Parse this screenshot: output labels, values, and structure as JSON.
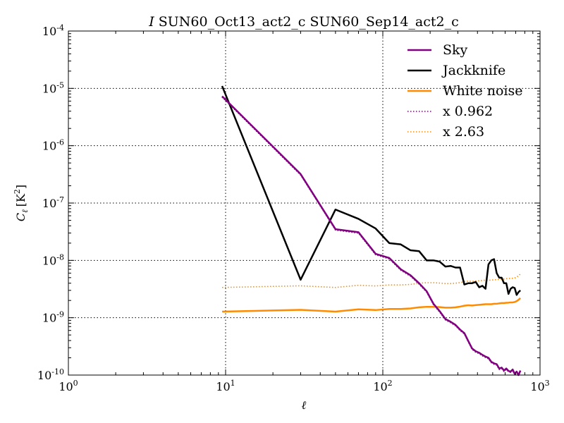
{
  "chart_data": {
    "type": "line",
    "title_prefix": "I",
    "title": "SUN60_Oct13_act2_c SUN60_Sep14_act2_c",
    "xlabel": "ℓ",
    "ylabel_main": "C",
    "ylabel_sub": "ℓ",
    "ylabel_unit": "[K",
    "ylabel_unit_exp": "2",
    "ylabel_unit_close": "]",
    "x_scale": "log",
    "y_scale": "log",
    "xlim": [
      1,
      1000
    ],
    "ylim": [
      1e-10,
      0.0001
    ],
    "grid": true,
    "legend_position": "top-right",
    "x_ticks": [
      {
        "value": 1,
        "base": "10",
        "exp": "0"
      },
      {
        "value": 10,
        "base": "10",
        "exp": "1"
      },
      {
        "value": 100,
        "base": "10",
        "exp": "2"
      },
      {
        "value": 1000,
        "base": "10",
        "exp": "3"
      }
    ],
    "y_ticks": [
      {
        "value": 1e-10,
        "base": "10",
        "exp": "-10"
      },
      {
        "value": 1e-09,
        "base": "10",
        "exp": "-9"
      },
      {
        "value": 1e-08,
        "base": "10",
        "exp": "-8"
      },
      {
        "value": 1e-07,
        "base": "10",
        "exp": "-7"
      },
      {
        "value": 1e-06,
        "base": "10",
        "exp": "-6"
      },
      {
        "value": 1e-05,
        "base": "10",
        "exp": "-5"
      },
      {
        "value": 0.0001,
        "base": "10",
        "exp": "-4"
      }
    ],
    "series": [
      {
        "name": "Sky",
        "color": "#800080",
        "style": "solid",
        "x": [
          9.5,
          30,
          50,
          70,
          90,
          110,
          130,
          150,
          170,
          190,
          210,
          230,
          250,
          270,
          290,
          310,
          330,
          350,
          370,
          390,
          410,
          430,
          450,
          470,
          490,
          510,
          530,
          550,
          570,
          590,
          610,
          630,
          650,
          670,
          690,
          710,
          730,
          750
        ],
        "y": [
          7.3e-06,
          3.2e-07,
          3.5e-08,
          3.1e-08,
          1.3e-08,
          1.1e-08,
          7e-09,
          5.5e-09,
          4e-09,
          2.9e-09,
          1.75e-09,
          1.3e-09,
          9.5e-10,
          8.5e-10,
          7.5e-10,
          6.2e-10,
          5.4e-10,
          3.9e-10,
          2.9e-10,
          2.6e-10,
          2.45e-10,
          2.25e-10,
          2.1e-10,
          2e-10,
          1.7e-10,
          1.6e-10,
          1.55e-10,
          1.3e-10,
          1.35e-10,
          1.2e-10,
          1.3e-10,
          1.18e-10,
          1.15e-10,
          1.25e-10,
          1.05e-10,
          1.15e-10,
          1e-10,
          1.2e-10
        ]
      },
      {
        "name": "Jackknife",
        "color": "#000000",
        "style": "solid",
        "x": [
          9.5,
          30,
          50,
          70,
          90,
          110,
          130,
          150,
          170,
          190,
          210,
          230,
          250,
          270,
          290,
          310,
          330,
          350,
          370,
          390,
          410,
          430,
          450,
          470,
          490,
          510,
          530,
          550,
          570,
          590,
          610,
          630,
          650,
          670,
          690,
          710,
          730,
          750
        ],
        "y": [
          1.1e-05,
          4.6e-09,
          7.7e-08,
          5.3e-08,
          3.6e-08,
          2e-08,
          1.9e-08,
          1.5e-08,
          1.45e-08,
          1e-08,
          1e-08,
          9.5e-09,
          7.8e-09,
          8e-09,
          7.5e-09,
          7.5e-09,
          3.8e-09,
          4e-09,
          4e-09,
          4.2e-09,
          3.4e-09,
          3.6e-09,
          3.2e-09,
          8.5e-09,
          1e-08,
          1.05e-08,
          6e-09,
          5e-09,
          5e-09,
          4e-09,
          4e-09,
          2.6e-09,
          3.2e-09,
          3.4e-09,
          3.3e-09,
          2.5e-09,
          2.8e-09,
          3e-09
        ]
      },
      {
        "name": "White noise",
        "color": "#FF8C00",
        "style": "solid",
        "x": [
          9.5,
          30,
          50,
          70,
          90,
          110,
          130,
          150,
          170,
          190,
          210,
          230,
          250,
          270,
          290,
          310,
          330,
          350,
          370,
          390,
          410,
          430,
          450,
          470,
          490,
          510,
          530,
          550,
          570,
          590,
          610,
          630,
          650,
          670,
          690,
          710,
          730,
          750
        ],
        "y": [
          1.28e-09,
          1.37e-09,
          1.28e-09,
          1.4e-09,
          1.36e-09,
          1.42e-09,
          1.42e-09,
          1.45e-09,
          1.52e-09,
          1.55e-09,
          1.55e-09,
          1.53e-09,
          1.5e-09,
          1.5e-09,
          1.52e-09,
          1.56e-09,
          1.62e-09,
          1.65e-09,
          1.63e-09,
          1.66e-09,
          1.68e-09,
          1.7e-09,
          1.72e-09,
          1.72e-09,
          1.72e-09,
          1.75e-09,
          1.75e-09,
          1.78e-09,
          1.8e-09,
          1.8e-09,
          1.82e-09,
          1.83e-09,
          1.85e-09,
          1.85e-09,
          1.88e-09,
          1.95e-09,
          2.05e-09,
          2.2e-09
        ]
      },
      {
        "name": "x 0.962",
        "color": "#800080",
        "style": "dotted",
        "x": [
          9.5,
          30,
          50,
          70,
          90,
          110,
          130,
          150,
          170,
          190,
          210,
          230,
          250,
          270,
          290,
          310,
          330,
          350,
          370,
          390,
          410,
          430,
          450,
          470,
          490,
          510,
          530,
          550,
          570,
          590,
          610,
          630,
          650,
          670,
          690,
          710,
          730,
          750
        ],
        "y": [
          7.02e-06,
          3.08e-07,
          3.37e-08,
          2.98e-08,
          1.25e-08,
          1.06e-08,
          6.73e-09,
          5.29e-09,
          3.85e-09,
          2.79e-09,
          1.68e-09,
          1.25e-09,
          9.14e-10,
          8.18e-10,
          7.22e-10,
          5.96e-10,
          5.19e-10,
          3.75e-10,
          2.79e-10,
          2.5e-10,
          2.36e-10,
          2.16e-10,
          2.02e-10,
          1.92e-10,
          1.64e-10,
          1.54e-10,
          1.49e-10,
          1.25e-10,
          1.3e-10,
          1.15e-10,
          1.25e-10,
          1.14e-10,
          1.11e-10,
          1.2e-10,
          1.01e-10,
          1.11e-10,
          9.6e-11,
          1.15e-10
        ]
      },
      {
        "name": "x 2.63",
        "color": "#FF8C00",
        "style": "dotted",
        "x": [
          9.5,
          30,
          50,
          70,
          90,
          110,
          130,
          150,
          170,
          190,
          210,
          230,
          250,
          270,
          290,
          310,
          330,
          350,
          370,
          390,
          410,
          430,
          450,
          470,
          490,
          510,
          530,
          550,
          570,
          590,
          610,
          630,
          650,
          670,
          690,
          710,
          730,
          750
        ],
        "y": [
          3.37e-09,
          3.6e-09,
          3.37e-09,
          3.68e-09,
          3.58e-09,
          3.73e-09,
          3.73e-09,
          3.81e-09,
          4e-09,
          4.08e-09,
          4.08e-09,
          4.02e-09,
          3.95e-09,
          3.95e-09,
          4e-09,
          4.1e-09,
          4.26e-09,
          4.34e-09,
          4.29e-09,
          4.37e-09,
          4.42e-09,
          4.47e-09,
          4.52e-09,
          4.52e-09,
          4.52e-09,
          4.6e-09,
          4.6e-09,
          4.68e-09,
          4.73e-09,
          4.73e-09,
          4.79e-09,
          4.81e-09,
          4.87e-09,
          4.87e-09,
          4.94e-09,
          5.13e-09,
          5.39e-09,
          5.79e-09
        ]
      }
    ]
  }
}
